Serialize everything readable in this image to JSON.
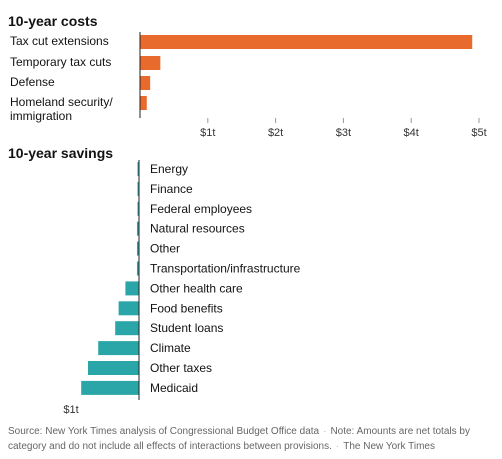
{
  "chart_data": [
    {
      "type": "bar",
      "orientation": "horizontal",
      "title": "10-year costs",
      "categories": [
        "Tax cut extensions",
        "Temporary tax cuts",
        "Defense",
        "Homeland security/\nimmigration"
      ],
      "values": [
        4.9,
        0.3,
        0.15,
        0.1
      ],
      "unit": "trillion",
      "xlim": [
        0,
        5
      ],
      "ticks": [
        1,
        2,
        3,
        4,
        5
      ],
      "tick_labels": [
        "$1t",
        "$2t",
        "$3t",
        "$4t",
        "$5t"
      ],
      "color": "#e86a2c"
    },
    {
      "type": "bar",
      "orientation": "horizontal",
      "title": "10-year savings",
      "categories": [
        "Energy",
        "Finance",
        "Federal employees",
        "Natural resources",
        "Other",
        "Transportation/infrastructure",
        "Other health care",
        "Food benefits",
        "Student loans",
        "Climate",
        "Other taxes",
        "Medicaid"
      ],
      "values": [
        -0.005,
        -0.01,
        -0.02,
        -0.03,
        -0.03,
        -0.03,
        -0.2,
        -0.3,
        -0.35,
        -0.6,
        -0.75,
        -0.85
      ],
      "unit": "trillion",
      "ticks": [
        -1
      ],
      "tick_labels": [
        "$1t"
      ],
      "color": "#2aa6a9"
    }
  ],
  "footer": {
    "source": "Source: New York Times analysis of Congressional Budget Office data",
    "note": "Note: Amounts are net totals by category and do not include all effects of interactions between provisions.",
    "credit": "The New York Times"
  }
}
